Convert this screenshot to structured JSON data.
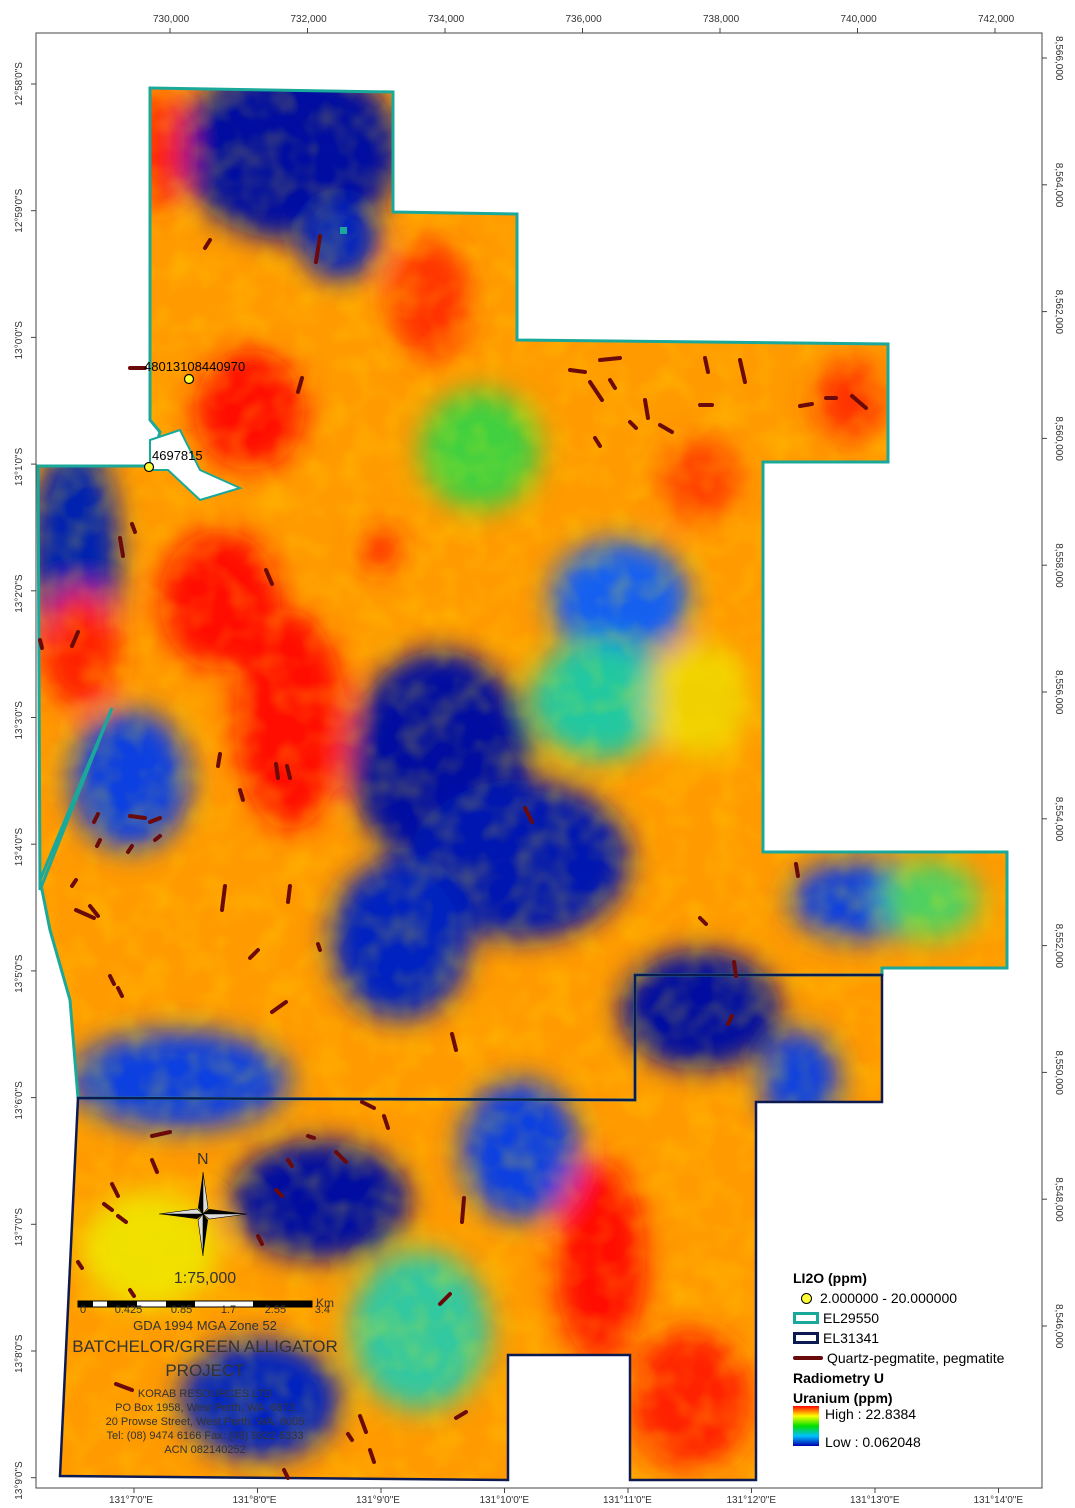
{
  "grid": {
    "x_labels": [
      "730,000",
      "732,000",
      "734,000",
      "736,000",
      "738,000",
      "740,000",
      "742,000"
    ],
    "y_labels": [
      "8,566,000",
      "8,564,000",
      "8,562,000",
      "8,560,000",
      "8,558,000",
      "8,556,000",
      "8,554,000",
      "8,552,000",
      "8,550,000",
      "8,548,000",
      "8,546,000"
    ],
    "lat_labels": [
      "12°58'0\"S",
      "12°59'0\"S",
      "13°0'0\"S",
      "13°1'0\"S",
      "13°2'0\"S",
      "13°3'0\"S",
      "13°4'0\"S",
      "13°5'0\"S",
      "13°6'0\"S",
      "13°7'0\"S",
      "13°8'0\"S",
      "13°9'0\"S"
    ],
    "lon_labels": [
      "131°7'0\"E",
      "131°8'0\"E",
      "131°9'0\"E",
      "131°10'0\"E",
      "131°11'0\"E",
      "131°12'0\"E",
      "131°13'0\"E",
      "131°14'0\"E"
    ]
  },
  "samples": [
    {
      "label": "48013108440970"
    },
    {
      "label": "4697815"
    }
  ],
  "north_label": "N",
  "scale": {
    "ratio": "1:75,000",
    "ticks": [
      "0",
      "0.425",
      "0.85",
      "1.7",
      "2.55",
      "3.4"
    ],
    "unit": "Km"
  },
  "datum": "GDA 1994 MGA Zone 52",
  "project": {
    "line1": "BATCHELOR/GREEN ALLIGATOR",
    "line2": "PROJECT"
  },
  "company": {
    "name": "KORAB RESOURCES LTD",
    "po": "PO Box 1958, West Perth, WA, 6872",
    "street": "20 Prowse Street, West Perth, WA, 6005",
    "tel": "Tel: (08) 9474 6166 Fax: (08) 9322 6333",
    "acn": "ACN 082140252"
  },
  "legend": {
    "li2o_title": "LI2O (ppm)",
    "li2o_range": "2.000000 - 20.000000",
    "el1": "EL29550",
    "el2": "EL31341",
    "pegmatite": "Quartz-pegmatite, pegmatite",
    "radiometry_title": "Radiometry U",
    "uranium_title": "Uranium (ppm)",
    "high": "High : 22.8384",
    "low": "Low : 0.062048"
  },
  "colors": {
    "el29550": "#1aa89a",
    "el31341": "#0d1a52",
    "pegmatite": "#6b0a0a",
    "sample": "#ffff33"
  }
}
